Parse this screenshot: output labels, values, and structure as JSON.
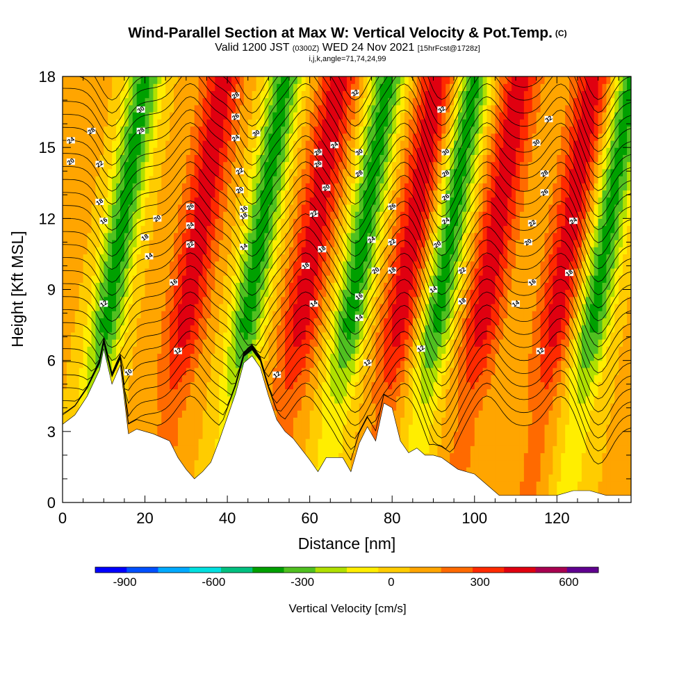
{
  "chart_data": {
    "type": "heatmap",
    "title": "Wind-Parallel Section at Max W: Vertical Velocity & Pot.Temp.",
    "title_tag": "(C)",
    "subtitle_valid": "Valid 1200 JST",
    "subtitle_utc": "(0300Z)",
    "subtitle_date": "WED 24 Nov 2021",
    "subtitle_fcst": "[15hrFcst@1728z]",
    "index_line": "i,j,k,angle=71,74,24,99",
    "xlabel": "Distance [nm]",
    "ylabel": "Height [Kft MSL]",
    "xlim": [
      0,
      138
    ],
    "ylim": [
      0,
      18
    ],
    "x_ticks": [
      0,
      20,
      40,
      60,
      80,
      100,
      120
    ],
    "y_ticks": [
      0,
      3,
      6,
      9,
      12,
      15,
      18
    ],
    "colorbar": {
      "label": "Vertical Velocity [cm/s]",
      "tick_labels": [
        "-900",
        "-600",
        "-300",
        "0",
        "300",
        "600"
      ],
      "tick_values": [
        -900,
        -600,
        -300,
        0,
        300,
        600
      ],
      "range": [
        -1000,
        700
      ],
      "step": 100,
      "colors": [
        "#0000ff",
        "#0050ff",
        "#00aaff",
        "#00e0e0",
        "#00c080",
        "#00a000",
        "#50c020",
        "#b0e000",
        "#ffee00",
        "#ffcc00",
        "#ffa500",
        "#ff6a00",
        "#ff2a00",
        "#e00010",
        "#a80050",
        "#600090"
      ]
    },
    "updraft_downdraft_axes_nm": {
      "downdrafts": [
        12,
        46,
        71,
        92,
        130
      ],
      "updrafts": [
        31,
        59,
        83,
        103,
        121
      ]
    },
    "terrain_kft": {
      "x": [
        0,
        3,
        6,
        9,
        10,
        12,
        14,
        16,
        18,
        22,
        26,
        28,
        30,
        32,
        34,
        36,
        38,
        40,
        42,
        44,
        46,
        48,
        50,
        52,
        54,
        56,
        60,
        62,
        64,
        66,
        68,
        70,
        72,
        74,
        76,
        78,
        80,
        82,
        84,
        86,
        88,
        90,
        92,
        96,
        100,
        104,
        106,
        112,
        120,
        124,
        128,
        132,
        138
      ],
      "height": [
        3.3,
        3.7,
        4.5,
        5.6,
        6.5,
        5.0,
        5.8,
        2.9,
        3.1,
        2.9,
        2.6,
        1.9,
        1.4,
        1.0,
        1.3,
        1.7,
        2.6,
        3.6,
        4.6,
        5.9,
        6.2,
        5.7,
        4.5,
        3.5,
        3.0,
        2.7,
        1.8,
        1.3,
        1.9,
        1.9,
        1.9,
        1.3,
        2.5,
        3.2,
        2.6,
        4.2,
        4.0,
        2.6,
        2.1,
        2.3,
        2.0,
        2.0,
        1.9,
        1.4,
        1.2,
        0.6,
        0.3,
        0.3,
        0.3,
        0.5,
        0.5,
        0.3,
        0.3
      ]
    },
    "potential_temperature_contours_C": {
      "levels_labeled": [
        10,
        12,
        14,
        16,
        18,
        20,
        22,
        24,
        26,
        28,
        30,
        32
      ],
      "labels": [
        {
          "text": "10",
          "x": 16,
          "y": 5.5
        },
        {
          "text": "12",
          "x": 10,
          "y": 8.4
        },
        {
          "text": "12",
          "x": 28,
          "y": 6.4
        },
        {
          "text": "12",
          "x": 52,
          "y": 5.4
        },
        {
          "text": "12",
          "x": 74,
          "y": 5.9
        },
        {
          "text": "12",
          "x": 87,
          "y": 6.5
        },
        {
          "text": "12",
          "x": 116,
          "y": 6.4
        },
        {
          "text": "14",
          "x": 21,
          "y": 10.4
        },
        {
          "text": "14",
          "x": 44,
          "y": 10.8
        },
        {
          "text": "14",
          "x": 61,
          "y": 8.4
        },
        {
          "text": "14",
          "x": 72,
          "y": 7.8
        },
        {
          "text": "14",
          "x": 90,
          "y": 9.0
        },
        {
          "text": "14",
          "x": 110,
          "y": 8.4
        },
        {
          "text": "16",
          "x": 10,
          "y": 11.9
        },
        {
          "text": "16",
          "x": 27,
          "y": 9.3
        },
        {
          "text": "16",
          "x": 44,
          "y": 12.4
        },
        {
          "text": "16",
          "x": 72,
          "y": 8.7
        },
        {
          "text": "16",
          "x": 114,
          "y": 9.3
        },
        {
          "text": "18",
          "x": 9,
          "y": 12.7
        },
        {
          "text": "18",
          "x": 20,
          "y": 11.2
        },
        {
          "text": "18",
          "x": 44,
          "y": 12.1
        },
        {
          "text": "18",
          "x": 59,
          "y": 10.0
        },
        {
          "text": "18",
          "x": 63,
          "y": 10.7
        },
        {
          "text": "18",
          "x": 80,
          "y": 9.8
        },
        {
          "text": "18",
          "x": 97,
          "y": 8.5
        },
        {
          "text": "18",
          "x": 123,
          "y": 9.7
        },
        {
          "text": "20",
          "x": 2,
          "y": 14.4
        },
        {
          "text": "20",
          "x": 23,
          "y": 12.0
        },
        {
          "text": "20",
          "x": 43,
          "y": 13.2
        },
        {
          "text": "20",
          "x": 64,
          "y": 13.3
        },
        {
          "text": "20",
          "x": 76,
          "y": 9.8
        },
        {
          "text": "20",
          "x": 91,
          "y": 10.9
        },
        {
          "text": "20",
          "x": 113,
          "y": 11.0
        },
        {
          "text": "22",
          "x": 9,
          "y": 14.3
        },
        {
          "text": "22",
          "x": 31,
          "y": 10.9
        },
        {
          "text": "22",
          "x": 43,
          "y": 14.0
        },
        {
          "text": "22",
          "x": 61,
          "y": 12.2
        },
        {
          "text": "22",
          "x": 80,
          "y": 11.0
        },
        {
          "text": "22",
          "x": 97,
          "y": 9.8
        },
        {
          "text": "22",
          "x": 114,
          "y": 11.8
        },
        {
          "text": "24",
          "x": 2,
          "y": 15.3
        },
        {
          "text": "24",
          "x": 31,
          "y": 11.7
        },
        {
          "text": "24",
          "x": 42,
          "y": 15.4
        },
        {
          "text": "24",
          "x": 66,
          "y": 15.1
        },
        {
          "text": "24",
          "x": 75,
          "y": 11.1
        },
        {
          "text": "24",
          "x": 93,
          "y": 11.9
        },
        {
          "text": "24",
          "x": 124,
          "y": 11.9
        },
        {
          "text": "26",
          "x": 31,
          "y": 12.5
        },
        {
          "text": "26",
          "x": 42,
          "y": 16.3
        },
        {
          "text": "26",
          "x": 62,
          "y": 14.3
        },
        {
          "text": "26",
          "x": 80,
          "y": 12.5
        },
        {
          "text": "26",
          "x": 93,
          "y": 12.9
        },
        {
          "text": "26",
          "x": 117,
          "y": 13.1
        },
        {
          "text": "28",
          "x": 7,
          "y": 15.7
        },
        {
          "text": "28",
          "x": 19,
          "y": 15.7
        },
        {
          "text": "28",
          "x": 42,
          "y": 17.2
        },
        {
          "text": "28",
          "x": 62,
          "y": 14.8
        },
        {
          "text": "28",
          "x": 72,
          "y": 13.9
        },
        {
          "text": "28",
          "x": 93,
          "y": 13.9
        },
        {
          "text": "28",
          "x": 117,
          "y": 13.9
        },
        {
          "text": "30",
          "x": 19,
          "y": 16.6
        },
        {
          "text": "30",
          "x": 47,
          "y": 15.6
        },
        {
          "text": "30",
          "x": 72,
          "y": 14.8
        },
        {
          "text": "30",
          "x": 93,
          "y": 14.8
        },
        {
          "text": "30",
          "x": 115,
          "y": 15.2
        },
        {
          "text": "32",
          "x": 71,
          "y": 17.3
        },
        {
          "text": "32",
          "x": 92,
          "y": 16.6
        },
        {
          "text": "32",
          "x": 118,
          "y": 16.2
        }
      ]
    }
  }
}
